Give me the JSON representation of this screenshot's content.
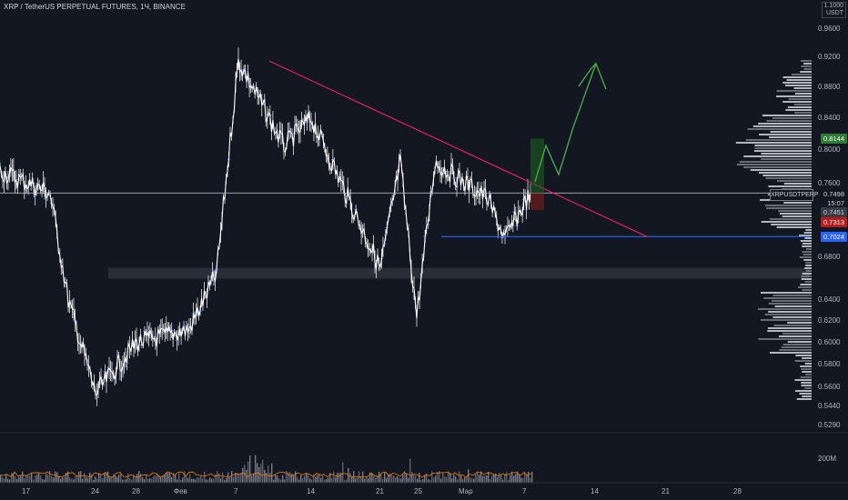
{
  "header": {
    "title": "XRP / TetherUS PERPETUAL FUTURES, 1Ч, BINANCE",
    "currency_top": "1.1000",
    "currency": "USDT"
  },
  "axis": {
    "price_ticks": [
      "0.9600",
      "0.9200",
      "0.8800",
      "0.8400",
      "0.8000",
      "0.7600",
      "0.6800",
      "0.6400",
      "0.6200",
      "0.6000",
      "0.5800",
      "0.5600",
      "0.5440",
      "0.5290"
    ],
    "time_ticks": [
      "17",
      "24",
      "28",
      "Фев",
      "7",
      "14",
      "21",
      "25",
      "Мар",
      "7",
      "14",
      "21",
      "28"
    ],
    "volume_tick": "200M"
  },
  "price_tags": {
    "target": {
      "value": "0.8144",
      "color": "#2e7d32"
    },
    "last": {
      "value": "0.7498",
      "countdown": "15:07",
      "symbol": "XRPUSDTPERP"
    },
    "level1": {
      "value": "0.7451"
    },
    "stop": {
      "value": "0.7313",
      "color": "#b71c1c"
    },
    "support": {
      "value": "0.7024",
      "color": "#2962ff"
    }
  },
  "chart_data": {
    "type": "candlestick",
    "symbol": "XRPUSDTPERP",
    "interval": "1H",
    "key_points": [
      {
        "x": "Jan 14",
        "y": 0.775
      },
      {
        "x": "Jan 20",
        "y": 0.75
      },
      {
        "x": "Jan 22",
        "y": 0.64
      },
      {
        "x": "Jan 24",
        "y": 0.555
      },
      {
        "x": "Jan 28",
        "y": 0.6
      },
      {
        "x": "Feb 2",
        "y": 0.612
      },
      {
        "x": "Feb 5",
        "y": 0.665
      },
      {
        "x": "Feb 7",
        "y": 0.915
      },
      {
        "x": "Feb 10",
        "y": 0.805
      },
      {
        "x": "Feb 14",
        "y": 0.84
      },
      {
        "x": "Feb 20",
        "y": 0.67
      },
      {
        "x": "Feb 23",
        "y": 0.785
      },
      {
        "x": "Feb 24",
        "y": 0.625
      },
      {
        "x": "Feb 26",
        "y": 0.785
      },
      {
        "x": "Mar 3",
        "y": 0.745
      },
      {
        "x": "Mar 5",
        "y": 0.7
      },
      {
        "x": "Mar 7",
        "y": 0.7498
      }
    ],
    "last_price": 0.7498,
    "ylim": [
      0.529,
      1.1
    ],
    "drawings": {
      "downtrend_line": {
        "from": {
          "x": "Feb 8",
          "y": 0.915
        },
        "to": {
          "x": "Mar 20",
          "y": 0.702
        },
        "color": "#e91e63"
      },
      "support_line": {
        "price": 0.7024,
        "color": "#2962ff"
      },
      "last_price_line": {
        "price": 0.7498
      },
      "zone": {
        "from": 0.66,
        "to": 0.67
      },
      "projection_arrows": {
        "color": "#4caf50",
        "target": 0.913
      }
    }
  }
}
